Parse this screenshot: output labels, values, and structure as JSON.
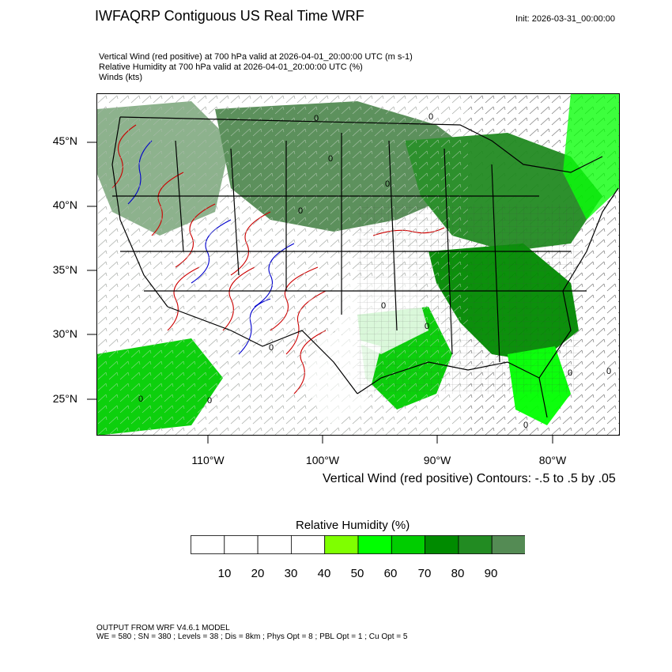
{
  "header": {
    "title": "IWFAQRP Contiguous US Real Time WRF",
    "init": "Init: 2026-03-31_00:00:00",
    "desc_lines": [
      "Vertical Wind (red positive) at 700 hPa valid at 2026-04-01_20:00:00 UTC   (m s-1)",
      "Relative Humidity at 700 hPa valid at 2026-04-01_20:00:00 UTC   (%)",
      "Winds   (kts)"
    ]
  },
  "map": {
    "lat_labels": [
      "45°N",
      "40°N",
      "35°N",
      "30°N",
      "25°N"
    ],
    "lon_labels": [
      "110°W",
      "100°W",
      "90°W",
      "80°W"
    ],
    "contour_label": "0",
    "contour_note": "Vertical Wind (red positive) Contours: -.5 to .5 by .05"
  },
  "legend": {
    "title": "Relative Humidity  (%)",
    "ticks": [
      "10",
      "20",
      "30",
      "40",
      "50",
      "60",
      "70",
      "80",
      "90"
    ],
    "colors": [
      "#ffffff",
      "#ffffff",
      "#ffffff",
      "#ffffff",
      "#7fff00",
      "#00ff00",
      "#00cd00",
      "#008b00",
      "#228b22",
      "#548b54"
    ]
  },
  "footer": {
    "line1": "OUTPUT FROM WRF V4.6.1 MODEL",
    "line2": "WE = 580 ; SN = 380 ; Levels = 38 ; Dis = 8km ; Phys Opt = 8 ; PBL Opt = 1 ; Cu Opt = 5"
  }
}
